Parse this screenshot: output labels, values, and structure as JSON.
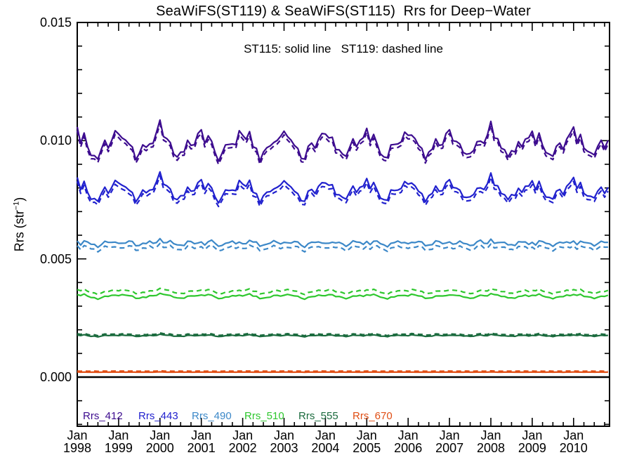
{
  "page": {
    "background": "#ffffff",
    "axis_color": "#000000"
  },
  "chart_data": {
    "type": "line",
    "title": "SeaWiFS(ST119) & SeaWiFS(ST115)  Rrs for Deep−Water",
    "annotation": "ST115: solid line   ST119: dashed line",
    "ylabel_parts": {
      "prefix": "Rrs (str",
      "sup": "−1",
      "suffix": ")"
    },
    "line_meaning": {
      "solid": "ST115",
      "dashed": "ST119"
    },
    "xlim": [
      1998.0,
      2010.87
    ],
    "ylim": [
      -0.00208,
      0.015
    ],
    "grid": "off",
    "legend_position": "bottom-inside",
    "y_major_ticks": {
      "values": [
        0.0,
        0.005,
        0.01,
        0.015
      ],
      "labels": [
        "0.000",
        "0.005",
        "0.010",
        "0.015"
      ]
    },
    "y_minor_step": 0.001,
    "x_major_tick_years": [
      1998,
      1999,
      2000,
      2001,
      2002,
      2003,
      2004,
      2005,
      2006,
      2007,
      2008,
      2009,
      2010
    ],
    "x_tick_month_label": "Jan",
    "x_minor_step_years": 0.25,
    "zero_line_value": 0.0,
    "sampling": {
      "start_year": 1998,
      "points_per_year": 12,
      "n_points": 155
    },
    "shared_monthly_noise_units": [
      4,
      -2,
      3,
      -1,
      -3,
      1,
      -4,
      -1,
      2,
      -2,
      1,
      3,
      -1,
      2,
      -2,
      1,
      3,
      -2,
      0,
      2,
      -3,
      1,
      -1,
      2,
      9,
      3,
      -1,
      2,
      -2,
      0,
      1,
      -3,
      2,
      0,
      -2,
      1,
      2,
      -2,
      1,
      3,
      -1,
      -3,
      0,
      2,
      -1,
      1,
      -2,
      3,
      -2,
      1,
      4,
      -1,
      2,
      -3,
      1,
      0,
      -2,
      2,
      1,
      -1,
      1,
      3,
      -2,
      0,
      2,
      -1,
      -4,
      1,
      0,
      -2,
      2,
      1,
      -1,
      2,
      0,
      -3,
      1,
      2,
      -2,
      0,
      3,
      -1,
      1,
      -2,
      3,
      -1,
      2,
      1,
      -2,
      0,
      -3,
      2,
      -1,
      1,
      0,
      2,
      -2,
      4,
      -1,
      0,
      2,
      -2,
      1,
      -1,
      3,
      0,
      -2,
      1,
      2,
      0,
      -3,
      1,
      -1,
      2,
      0,
      -2,
      1,
      3,
      -1,
      0,
      8,
      2,
      -1,
      -2,
      1,
      0,
      2,
      -3,
      1,
      -1,
      2,
      -2,
      1,
      -2,
      3,
      0,
      -1,
      2,
      -2,
      1,
      0,
      -3,
      2,
      1,
      4,
      -1,
      2,
      -2,
      0,
      3,
      -1,
      1,
      2,
      -2,
      1,
      0
    ],
    "series": [
      {
        "name": "Rrs_412",
        "color": "#3D0C8F",
        "mean_st115": 0.00985,
        "seasonal_pct": [
          5,
          1.5,
          3,
          -0.5,
          -3,
          -5.5,
          -4,
          -1.5,
          0.5,
          -0.5,
          1,
          4
        ],
        "noise_scale_pct": 0.6,
        "st119_factor": 0.985
      },
      {
        "name": "Rrs_443",
        "color": "#2121CE",
        "mean_st115": 0.0079,
        "seasonal_pct": [
          4.5,
          1.5,
          3,
          -0.5,
          -3,
          -5,
          -3.5,
          -1,
          0.5,
          -0.5,
          1,
          3.5
        ],
        "noise_scale_pct": 0.6,
        "st119_factor": 0.98
      },
      {
        "name": "Rrs_490",
        "color": "#3C88C8",
        "mean_st115": 0.00565,
        "seasonal_pct": [
          0.5,
          -0.5,
          1,
          1.5,
          0.5,
          -1,
          -1.5,
          -0.5,
          1,
          1.5,
          0.5,
          0
        ],
        "noise_scale_pct": 0.35,
        "st119_factor": 0.965
      },
      {
        "name": "Rrs_510",
        "color": "#2EC72E",
        "mean_st115": 0.0034,
        "seasonal_pct": [
          1.5,
          2,
          2.5,
          1,
          0,
          -1.5,
          -2,
          -1,
          0,
          1,
          1.5,
          1
        ],
        "noise_scale_pct": 0.3,
        "st119_factor": 1.06
      },
      {
        "name": "Rrs_555",
        "color": "#1B6B3E",
        "mean_st115": 0.00175,
        "seasonal_pct": [
          0.5,
          1,
          1.5,
          0.5,
          -0.5,
          -1,
          -1.5,
          -0.5,
          0.5,
          1,
          0.5,
          0
        ],
        "noise_scale_pct": 0.35,
        "st119_factor": 1.03
      },
      {
        "name": "Rrs_670",
        "color": "#E04E14",
        "mean_st115": 0.00021,
        "seasonal_pct": [
          1,
          0.5,
          0,
          -0.5,
          0,
          0.5,
          -0.5,
          0,
          0.5,
          -0.5,
          0,
          0.5
        ],
        "noise_scale_pct": 0.5,
        "st119_factor": 1.2
      }
    ]
  }
}
